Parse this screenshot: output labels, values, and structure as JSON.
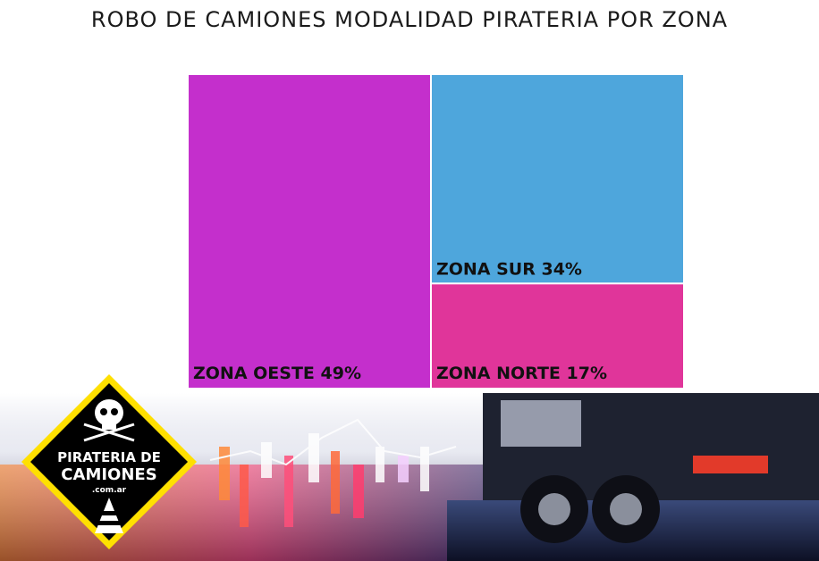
{
  "chart_data": {
    "type": "treemap",
    "title": "ROBO DE CAMIONES MODALIDAD PIRATERIA POR ZONA",
    "cells": [
      {
        "name": "ZONA OESTE",
        "value": 49,
        "label": "ZONA OESTE 49%",
        "color": "#c42fcc"
      },
      {
        "name": "ZONA SUR",
        "value": 34,
        "label": "ZONA SUR 34%",
        "color": "#4ea6dc"
      },
      {
        "name": "ZONA NORTE",
        "value": 17,
        "label": "ZONA NORTE 17%",
        "color": "#e0359a"
      }
    ]
  },
  "logo": {
    "line1": "PIRATERIA DE",
    "line2": "CAMIONES",
    "line3": ".com.ar",
    "border_color": "#ffe000",
    "fill_color": "#000000"
  }
}
